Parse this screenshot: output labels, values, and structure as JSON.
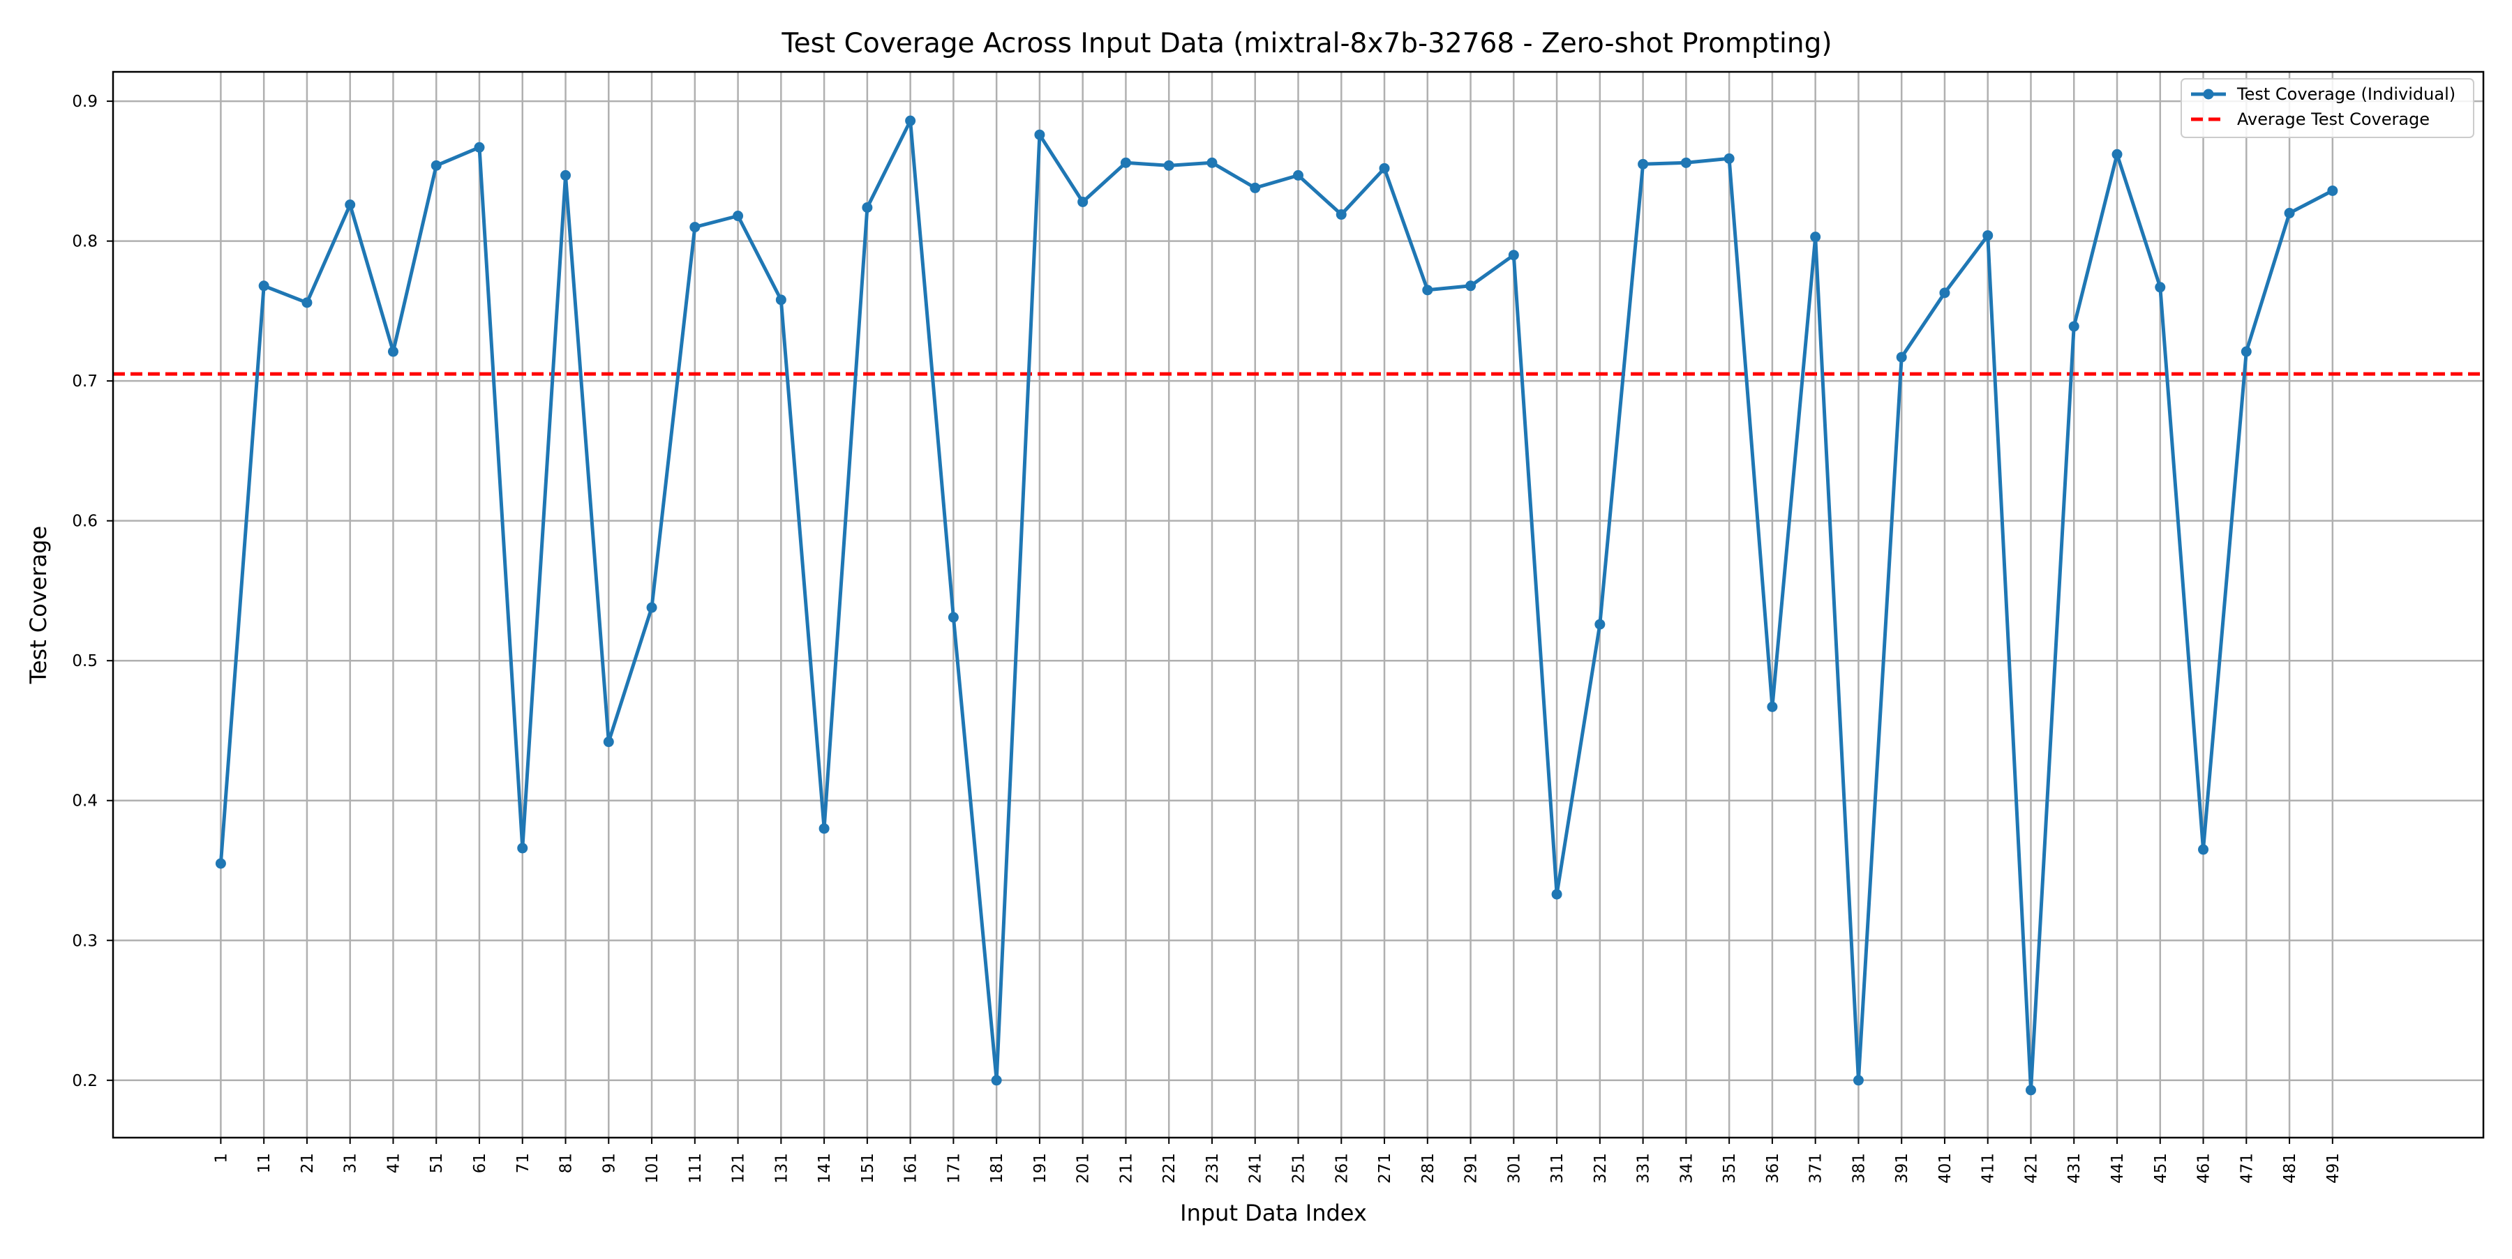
{
  "chart_data": {
    "type": "line",
    "title": "Test Coverage Across Input Data (mixtral-8x7b-32768 - Zero-shot Prompting)",
    "xlabel": "Input Data Index",
    "ylabel": "Test Coverage",
    "x": [
      1,
      11,
      21,
      31,
      41,
      51,
      61,
      71,
      81,
      91,
      101,
      111,
      121,
      131,
      141,
      151,
      161,
      171,
      181,
      191,
      201,
      211,
      221,
      231,
      241,
      251,
      261,
      271,
      281,
      291,
      301,
      311,
      321,
      331,
      341,
      351,
      361,
      371,
      381,
      391,
      401,
      411,
      421,
      431,
      441,
      451,
      461,
      471,
      481,
      491
    ],
    "xlim": [
      -24,
      526
    ],
    "ylim": [
      0.159,
      0.921
    ],
    "yticks": [
      0.2,
      0.3,
      0.4,
      0.5,
      0.6,
      0.7,
      0.8,
      0.9
    ],
    "grid": true,
    "legend_position": "upper right",
    "series": [
      {
        "name": "Test Coverage (Individual)",
        "style": "line-marker",
        "color": "#1f77b4",
        "values": [
          0.355,
          0.768,
          0.756,
          0.826,
          0.721,
          0.854,
          0.867,
          0.366,
          0.847,
          0.442,
          0.538,
          0.81,
          0.818,
          0.758,
          0.38,
          0.824,
          0.886,
          0.531,
          0.2,
          0.876,
          0.828,
          0.856,
          0.854,
          0.856,
          0.838,
          0.847,
          0.819,
          0.852,
          0.765,
          0.768,
          0.79,
          0.333,
          0.526,
          0.855,
          0.856,
          0.859,
          0.467,
          0.803,
          0.2,
          0.717,
          0.763,
          0.804,
          0.193,
          0.739,
          0.862,
          0.767,
          0.365,
          0.721,
          0.82,
          0.836
        ]
      },
      {
        "name": "Average Test Coverage",
        "style": "dashed-hline",
        "color": "#ff0000",
        "value": 0.705
      }
    ]
  }
}
